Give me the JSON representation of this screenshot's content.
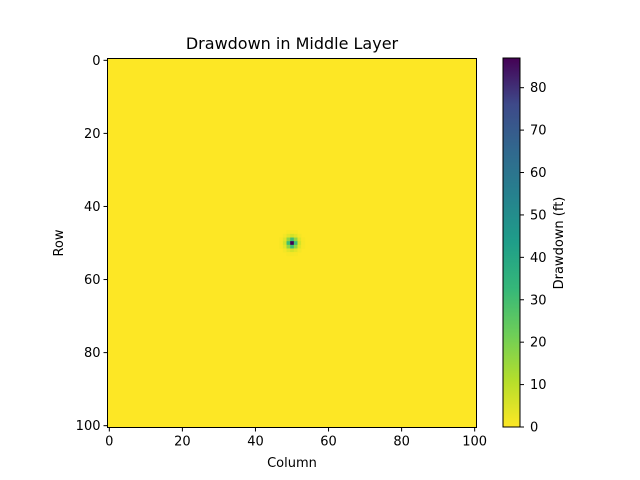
{
  "chart_data": {
    "type": "heatmap",
    "title": "Drawdown in Middle Layer",
    "xlabel": "Column",
    "ylabel": "Row",
    "grid": false,
    "grid_shape": {
      "rows": 101,
      "columns": 101
    },
    "xlim": [
      0,
      100
    ],
    "ylim": [
      100,
      0
    ],
    "x_ticks": [
      0,
      20,
      40,
      60,
      80,
      100
    ],
    "y_ticks": [
      0,
      20,
      40,
      60,
      80,
      100
    ],
    "background_value": 0,
    "peak": {
      "row": 50,
      "column": 50,
      "value": 87
    },
    "colormap": "viridis",
    "colorbar": {
      "label": "Drawdown (ft)",
      "min": 0,
      "max": 87,
      "ticks": [
        0,
        10,
        20,
        30,
        40,
        50,
        60,
        70,
        80
      ],
      "placement": "right"
    },
    "colors": {
      "low": "#fde725",
      "high": "#440154"
    }
  }
}
